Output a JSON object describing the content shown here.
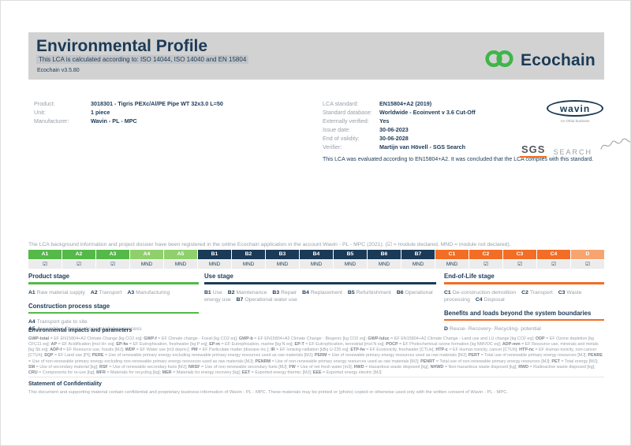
{
  "header": {
    "title": "Environmental Profile",
    "subtitle": "This LCA is calculated according to: ISO 14044, ISO 14040 and EN 15804",
    "version": "Ecochain v3.5.80",
    "brand": "Ecochain"
  },
  "product_info": {
    "rows": [
      {
        "label": "Product:",
        "value": "3018301 - Tigris PEXc/Al/PE Pipe WT 32x3.0 L=50"
      },
      {
        "label": "Unit:",
        "value": "1 piece"
      },
      {
        "label": "Manufacturer:",
        "value": "Wavin - PL - MPC"
      }
    ]
  },
  "lca_info": {
    "rows": [
      {
        "label": "LCA standard:",
        "value": "EN15804+A2 (2019)"
      },
      {
        "label": "Standard database:",
        "value": "Worldwide - Ecoinvent v 3.6 Cut-Off"
      },
      {
        "label": "Externally verified:",
        "value": "Yes"
      },
      {
        "label": "Issue date:",
        "value": "30-06-2023"
      },
      {
        "label": "End of validity:",
        "value": "30-06-2028"
      },
      {
        "label": "Verifier:",
        "value": "Martijn van Hövell - SGS Search"
      }
    ],
    "evaluation_note": "This LCA was evaluated according to EN15804+A2. It was concluded that the LCA complies with this standard."
  },
  "logos": {
    "wavin": {
      "name": "wavin",
      "tagline": "An Orbia business"
    },
    "sgs": {
      "name": "SGS",
      "search": "SEARCH"
    }
  },
  "registration_note": "The LCA background information and project dossier have been registered in the online Ecochain application in the account Wavin - PL - MPC (2021). (☑ = module declared, MND = module not declared).",
  "modules": {
    "declared_symbol": "☑",
    "not_declared_label": "MND",
    "columns": [
      {
        "id": "A1",
        "declared": true,
        "color": "accent_green"
      },
      {
        "id": "A2",
        "declared": true,
        "color": "accent_green"
      },
      {
        "id": "A3",
        "declared": true,
        "color": "accent_green"
      },
      {
        "id": "A4",
        "declared": false,
        "color": "accent_green_light"
      },
      {
        "id": "A5",
        "declared": false,
        "color": "accent_green_light"
      },
      {
        "id": "B1",
        "declared": false,
        "color": "navy"
      },
      {
        "id": "B2",
        "declared": false,
        "color": "navy"
      },
      {
        "id": "B3",
        "declared": false,
        "color": "navy"
      },
      {
        "id": "B4",
        "declared": false,
        "color": "navy"
      },
      {
        "id": "B5",
        "declared": false,
        "color": "navy"
      },
      {
        "id": "B6",
        "declared": false,
        "color": "navy"
      },
      {
        "id": "B7",
        "declared": false,
        "color": "navy"
      },
      {
        "id": "C1",
        "declared": false,
        "color": "accent_orange"
      },
      {
        "id": "C2",
        "declared": true,
        "color": "accent_orange"
      },
      {
        "id": "C3",
        "declared": true,
        "color": "accent_orange"
      },
      {
        "id": "C4",
        "declared": true,
        "color": "accent_orange"
      },
      {
        "id": "D",
        "declared": true,
        "color": "accent_orange_light"
      }
    ]
  },
  "stages": {
    "product": {
      "heading": "Product stage",
      "items": [
        {
          "key": "A1",
          "text": "Raw material supply"
        },
        {
          "key": "A2",
          "text": "Transport"
        },
        {
          "key": "A3",
          "text": "Manufacturing"
        }
      ]
    },
    "construction": {
      "heading": "Construction process stage",
      "items": [
        {
          "key": "A4",
          "text": "Transport gate to site"
        },
        {
          "key": "A5",
          "text": "Assembly / Construction installation process"
        }
      ]
    },
    "use": {
      "heading": "Use stage",
      "items": [
        {
          "key": "B1",
          "text": "Use"
        },
        {
          "key": "B2",
          "text": "Maintenance"
        },
        {
          "key": "B3",
          "text": "Repair"
        },
        {
          "key": "B4",
          "text": "Replacement"
        },
        {
          "key": "B5",
          "text": "Refurbishment"
        },
        {
          "key": "B6",
          "text": "Operational energy use"
        },
        {
          "key": "B7",
          "text": "Operational water use"
        }
      ]
    },
    "end_of_life": {
      "heading": "End-of-Life stage",
      "items": [
        {
          "key": "C1",
          "text": "De-construction demolition"
        },
        {
          "key": "C2",
          "text": "Transport"
        },
        {
          "key": "C3",
          "text": "Waste processing"
        },
        {
          "key": "C4",
          "text": "Disposal"
        }
      ]
    },
    "benefits": {
      "heading": "Benefits and loads beyond the system boundaries",
      "items": [
        {
          "key": "D",
          "text": "Reuse- Recovery- Recycling- potential"
        }
      ]
    }
  },
  "legend": {
    "heading": "Environmental impacts and parameters",
    "entries": [
      {
        "key": "GWP-total",
        "desc": "EF EN15804+A2 Climate Change [kg CO2 eq]"
      },
      {
        "key": "GWP-f",
        "desc": "EF Climate change - Fossil [kg CO2 eq]"
      },
      {
        "key": "GWP-b",
        "desc": "EF EN15804+A2 Climate Change - Biogenic [kg CO2 eq]"
      },
      {
        "key": "GWP-luluc",
        "desc": "EF EN15804+A2 Climate Change - Land use and LU change [kg CO2 eq]"
      },
      {
        "key": "ODP",
        "desc": "EF Ozone depletion [kg CFC11 eq]"
      },
      {
        "key": "AP",
        "desc": "EF Acidification [mol H+ eq]"
      },
      {
        "key": "EP-fw",
        "desc": "EF Eutrophication, freshwater [kg P eq]"
      },
      {
        "key": "EP-m",
        "desc": "EF Eutrophication, marine [kg N eq]"
      },
      {
        "key": "EP-T",
        "desc": "EF Eutrophication, terrestrial [mol N eq]"
      },
      {
        "key": "POCP",
        "desc": "EF Photochemical ozone formation [kg NMVOC eq]"
      },
      {
        "key": "ADP-mm",
        "desc": "EF Resource use, minerals and metals [kg Sb eq]"
      },
      {
        "key": "ADP-f",
        "desc": "EF Resource use, fossils [MJ]"
      },
      {
        "key": "WDP",
        "desc": "EF Water use [m3 depriv.]"
      },
      {
        "key": "PM",
        "desc": "EF Particulate matter [disease inc.]"
      },
      {
        "key": "IR",
        "desc": "EF Ionising radiation [kBq U-235 eq]"
      },
      {
        "key": "ETP-fw",
        "desc": "EF Ecotoxicity, freshwater [CTUe]"
      },
      {
        "key": "HTP-c",
        "desc": "EF Human toxicity, cancer [CTUh]"
      },
      {
        "key": "HTP-nc",
        "desc": "EF Human toxicity, non-cancer [CTUh]"
      },
      {
        "key": "SQP",
        "desc": "EF Land use [Pt]"
      },
      {
        "key": "PERE",
        "desc": "Use of renewable primary energy excluding renewable primary energy resources used as raw materials [MJ]"
      },
      {
        "key": "PERM",
        "desc": "Use of renewable primary energy resources used as raw materials [MJ]"
      },
      {
        "key": "PERT",
        "desc": "Total use of renewable primary energy resources [MJ]"
      },
      {
        "key": "PENRE",
        "desc": "Use of non-renewable primary energy excluding non-renewable primary energy resources used as raw materials [MJ]"
      },
      {
        "key": "PENRM",
        "desc": "Use of non-renewable primary energy resources used as raw materials [MJ]"
      },
      {
        "key": "PENRT",
        "desc": "Total use of non-renewable primary energy resources [MJ]"
      },
      {
        "key": "PET",
        "desc": "Total energy [MJ]"
      },
      {
        "key": "SM",
        "desc": "Use of secondary material [kg]"
      },
      {
        "key": "RSF",
        "desc": "Use of renewable secondary fuels [MJ]"
      },
      {
        "key": "NRSF",
        "desc": "Use of non-renewable secondary fuels [MJ]"
      },
      {
        "key": "FW",
        "desc": "Use of net fresh water [m3]"
      },
      {
        "key": "HWD",
        "desc": "Hazardous waste disposed [kg]"
      },
      {
        "key": "NHWD",
        "desc": "Non-hazardous waste disposed [kg]"
      },
      {
        "key": "RWD",
        "desc": "Radioactive waste disposed [kg]"
      },
      {
        "key": "CRU",
        "desc": "Components for re-use [kg]"
      },
      {
        "key": "MFR",
        "desc": "Materials for recycling [kg]"
      },
      {
        "key": "MER",
        "desc": "Materials for energy recovery [kg]"
      },
      {
        "key": "EET",
        "desc": "Exported energy thermic [MJ]"
      },
      {
        "key": "EEE",
        "desc": "Exported energy electric [MJ]"
      }
    ]
  },
  "confidentiality": {
    "heading": "Statement of Confidentiality",
    "body": "This document and supporting material contain confidential and proprietary business information of Wavin - PL - MPC. These materials may be printed or (photo) copied or otherwise used only with the written consent of Wavin - PL - MPC."
  },
  "colors": {
    "accent_green": "#54b948",
    "accent_green_light": "#8fd06c",
    "navy": "#1b3a57",
    "accent_orange": "#f26d25",
    "accent_orange_light": "#f7a470",
    "ecochain_green": "#3fb549",
    "sgs_orange": "#f36f21",
    "band_gray": "#d2d2d2"
  }
}
